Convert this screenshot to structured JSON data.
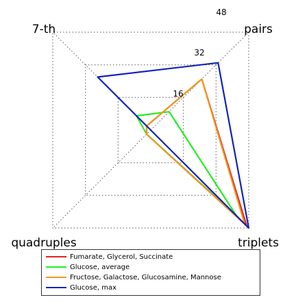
{
  "chart_data": {
    "type": "radar",
    "axes": [
      "pairs",
      "triplets",
      "quadruples",
      "7-th"
    ],
    "rings": [
      16,
      32,
      48
    ],
    "rmax": 48,
    "series": [
      {
        "name": "Fumarate, Glycerol, Succinate",
        "color": "#dd2222",
        "values": {
          "pairs": 25,
          "triplets": 47,
          "quadruples": 2,
          "7-th": 2
        }
      },
      {
        "name": "Glucose, average",
        "color": "#22ee22",
        "values": {
          "pairs": 9,
          "triplets": 42,
          "quadruples": 2,
          "7-th": 7
        }
      },
      {
        "name": "Fructose, Galactose, Glucosamine, Mannose",
        "color": "#ee9922",
        "values": {
          "pairs": 25,
          "triplets": 46,
          "quadruples": 2,
          "7-th": 2
        }
      },
      {
        "name": "Glucose, max",
        "color": "#1122bb",
        "values": {
          "pairs": 33,
          "triplets": 48,
          "quadruples": 0,
          "7-th": 26
        }
      }
    ]
  }
}
